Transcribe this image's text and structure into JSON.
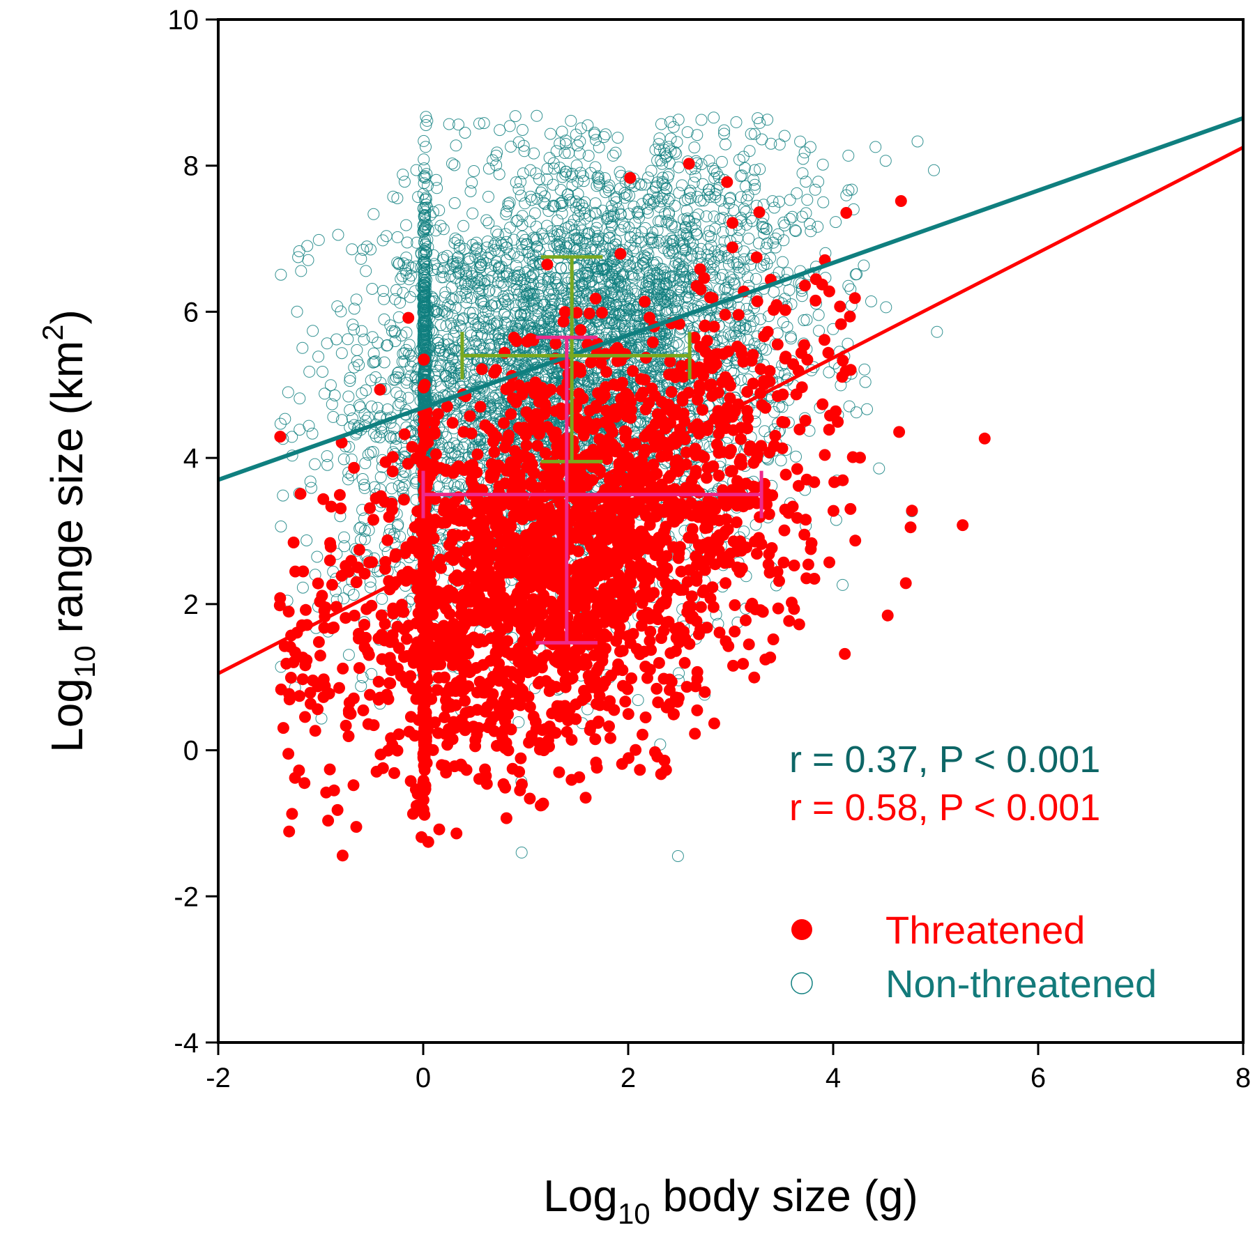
{
  "chart_data": {
    "type": "scatter",
    "title": "",
    "xlabel": {
      "main": "Log",
      "sub": "10",
      "rest": " body size (g)"
    },
    "ylabel": {
      "main": "Log",
      "sub": "10",
      "rest": " range size (km",
      "sup": "2",
      "end": ")"
    },
    "xlim": [
      -2,
      8
    ],
    "ylim": [
      -4,
      10
    ],
    "xticks": [
      -2,
      0,
      2,
      4,
      6,
      8
    ],
    "yticks": [
      -4,
      -2,
      0,
      2,
      4,
      6,
      8,
      10
    ],
    "xtick_labels": [
      "-2",
      "0",
      "2",
      "4",
      "6",
      "8"
    ],
    "ytick_labels": [
      "-4",
      "-2",
      "0",
      "2",
      "4",
      "6",
      "8",
      "10"
    ],
    "grid": false,
    "legend_position": "bottom-right",
    "colors": {
      "threatened": "#ff0000",
      "non_threatened": "#0f7f7f",
      "non_threatened_text": "#137a7a",
      "non_threatened_annot": "#0d6666",
      "mean_non_threatened": "#7aa81e",
      "mean_threatened": "#ee2a8c"
    },
    "series": [
      {
        "name": "Threatened",
        "legend_label": "Threatened",
        "marker": "filled-circle",
        "cloud": {
          "x_mean": 1.4,
          "x_sd": 1.15,
          "y_mean": 2.7,
          "y_sd": 1.35,
          "slope": 0.58,
          "n": 2600
        },
        "fit_line": {
          "x": [
            -2,
            8
          ],
          "y": [
            1.05,
            8.25
          ]
        },
        "mean_crosshair": {
          "x_mean": 1.4,
          "x_low": 0.0,
          "x_high": 3.3,
          "y_mean": 3.5,
          "y_low": 1.47,
          "y_high": 5.65
        }
      },
      {
        "name": "Non-threatened",
        "legend_label": "Non-threatened",
        "marker": "open-circle",
        "cloud": {
          "x_mean": 1.5,
          "x_sd": 1.05,
          "y_mean": 5.2,
          "y_sd": 1.55,
          "slope": 0.37,
          "n": 5200
        },
        "fit_line": {
          "x": [
            -2,
            8
          ],
          "y": [
            3.7,
            8.65
          ]
        },
        "mean_crosshair": {
          "x_mean": 1.45,
          "x_low": 0.38,
          "x_high": 2.6,
          "y_mean": 5.4,
          "y_low": 3.95,
          "y_high": 6.75
        }
      }
    ],
    "annotations": [
      {
        "text": "r = 0.37, P < 0.001",
        "series": "Non-threatened"
      },
      {
        "text": "r = 0.58, P < 0.001",
        "series": "Threatened"
      }
    ]
  }
}
